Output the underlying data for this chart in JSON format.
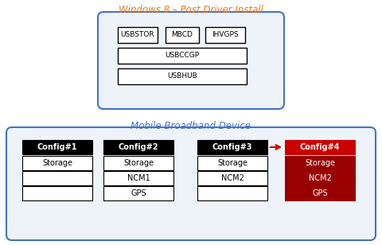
{
  "title_top": "Windows 8 – Post Driver Install",
  "title_bottom": "Mobile Broadband Device",
  "title_color": "#E87722",
  "title_bottom_color": "#4472C4",
  "top_box_edge_color": "#4472C4",
  "top_box_face_color": "#EEF3FA",
  "configs": [
    "Config#1",
    "Config#2",
    "Config#3",
    "Config#4"
  ],
  "config_items": [
    [
      "Storage",
      "",
      ""
    ],
    [
      "Storage",
      "NCM1",
      "GPS"
    ],
    [
      "Storage",
      "NCM2",
      ""
    ],
    [
      "Storage",
      "NCM2",
      "GPS"
    ]
  ],
  "arrow_color": "#CC0000",
  "config_header_bg": "#000000",
  "config_header_fg": "#FFFFFF",
  "config4_header_bg": "#CC0000",
  "config4_item_bg": "#990000",
  "config4_item_fg": "#FFFFFF",
  "config_item_bg": "#FFFFFF",
  "config_item_border": "#000000",
  "outer_box_edge_color": "#4472C4",
  "outer_box_face_color": "#EEF3FA",
  "fig_bg": "#FFFFFF",
  "figw": 4.8,
  "figh": 3.08,
  "dpi": 100
}
